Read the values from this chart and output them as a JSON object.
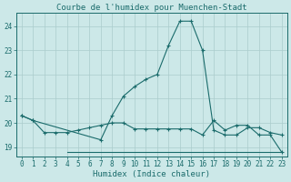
{
  "title": "Courbe de l'humidex pour Muenchen-Stadt",
  "xlabel": "Humidex (Indice chaleur)",
  "bg_color": "#cce8e8",
  "grid_color": "#aacccc",
  "line_color": "#1a6b6b",
  "x": [
    0,
    1,
    2,
    3,
    4,
    5,
    6,
    7,
    8,
    9,
    10,
    11,
    12,
    13,
    14,
    15,
    16,
    17,
    18,
    19,
    20,
    21,
    22,
    23
  ],
  "y_main": [
    20.3,
    20.1,
    null,
    null,
    null,
    null,
    null,
    19.3,
    20.3,
    21.1,
    21.5,
    21.8,
    22.0,
    23.2,
    24.2,
    24.2,
    23.0,
    19.7,
    19.5,
    19.5,
    19.8,
    19.8,
    19.6,
    19.5
  ],
  "y_minmax_high": [
    20.3,
    20.1,
    19.6,
    19.6,
    19.6,
    19.7,
    19.8,
    19.9,
    20.0,
    20.0,
    19.75,
    19.75,
    19.75,
    19.75,
    19.75,
    19.75,
    19.5,
    20.1,
    19.7,
    19.9,
    19.9,
    19.5,
    19.5,
    18.8
  ],
  "y_minmax_low": [
    null,
    null,
    null,
    null,
    18.8,
    18.8,
    18.8,
    18.8,
    18.8,
    18.8,
    18.8,
    18.8,
    18.8,
    18.8,
    18.8,
    18.8,
    18.8,
    18.8,
    18.8,
    18.8,
    18.8,
    18.8,
    18.8,
    18.8
  ],
  "ylim": [
    18.6,
    24.55
  ],
  "xlim": [
    -0.5,
    23.5
  ],
  "yticks": [
    19,
    20,
    21,
    22,
    23,
    24
  ],
  "xticks": [
    0,
    1,
    2,
    3,
    4,
    5,
    6,
    7,
    8,
    9,
    10,
    11,
    12,
    13,
    14,
    15,
    16,
    17,
    18,
    19,
    20,
    21,
    22,
    23
  ],
  "title_fontsize": 6.5,
  "label_fontsize": 6.5,
  "tick_fontsize": 5.5
}
